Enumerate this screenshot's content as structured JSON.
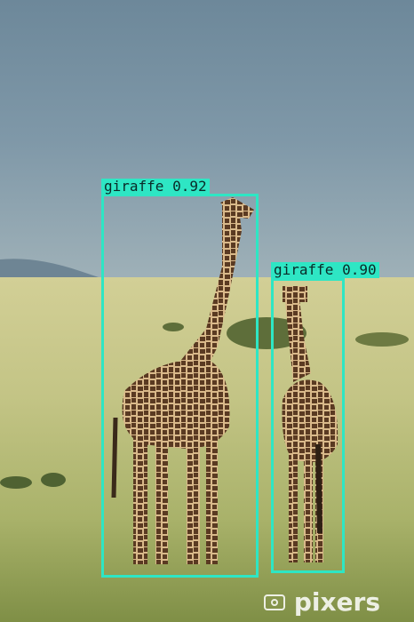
{
  "detections": [
    {
      "label": "giraffe",
      "confidence": "0.92",
      "text": "giraffe 0.92"
    },
    {
      "label": "giraffe",
      "confidence": "0.90",
      "text": "giraffe 0.90"
    }
  ],
  "watermark": {
    "text": "pixers",
    "icon": "camera-icon"
  },
  "colors": {
    "box": "#2ee6c4",
    "sky": "#6f8a9c",
    "grass": "#c8c98a"
  }
}
